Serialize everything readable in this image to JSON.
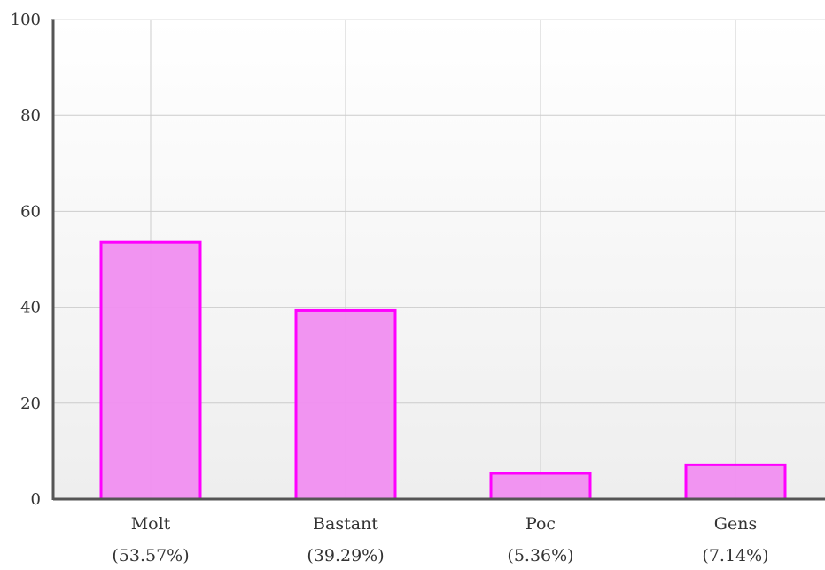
{
  "chart_data": {
    "type": "bar",
    "title": "",
    "xlabel": "",
    "ylabel": "",
    "ylim": [
      0,
      100
    ],
    "yticks": [
      0,
      20,
      40,
      60,
      80,
      100
    ],
    "grid": true,
    "legend": "none",
    "categories": [
      "Molt",
      "Bastant",
      "Poc",
      "Gens"
    ],
    "category_percent_labels": [
      "(53.57%)",
      "(39.29%)",
      "(5.36%)",
      "(7.14%)"
    ],
    "values": [
      53.57,
      39.29,
      5.36,
      7.14
    ]
  },
  "colors": {
    "bar_fill": "#f08ef0",
    "bar_stroke": "#ff00ff",
    "grid": "#cccccc",
    "axis": "#555555",
    "plot_bg_top": "#ffffff",
    "plot_bg_bottom": "#eeeeee"
  }
}
